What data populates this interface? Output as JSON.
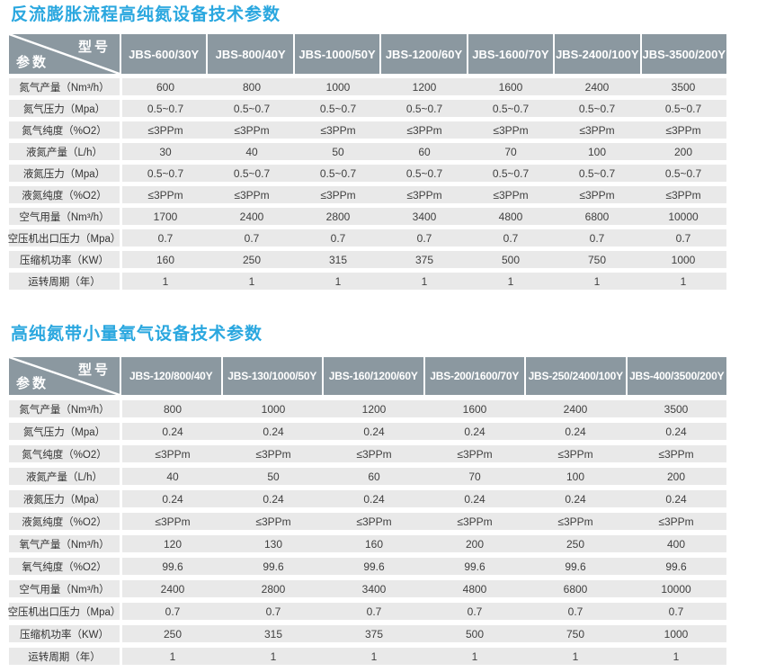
{
  "page": {
    "background": "#ffffff",
    "accent_title_color": "#2aa7df",
    "header_bg_color": "#8b98a0",
    "row_bg_color": "#e9e9e9"
  },
  "tables": [
    {
      "title": "反流膨胀流程高纯氮设备技术参数",
      "corner": {
        "top": "型号",
        "bottom": "参数"
      },
      "columns": [
        "JBS-600/30Y",
        "JBS-800/40Y",
        "JBS-1000/50Y",
        "JBS-1200/60Y",
        "JBS-1600/70Y",
        "JBS-2400/100Y",
        "JBS-3500/200Y"
      ],
      "rows": [
        {
          "label": "氮气产量（Nm³/h）",
          "values": [
            "600",
            "800",
            "1000",
            "1200",
            "1600",
            "2400",
            "3500"
          ]
        },
        {
          "label": "氮气压力（Mpa）",
          "values": [
            "0.5~0.7",
            "0.5~0.7",
            "0.5~0.7",
            "0.5~0.7",
            "0.5~0.7",
            "0.5~0.7",
            "0.5~0.7"
          ]
        },
        {
          "label": "氮气纯度（%O2）",
          "values": [
            "≤3PPm",
            "≤3PPm",
            "≤3PPm",
            "≤3PPm",
            "≤3PPm",
            "≤3PPm",
            "≤3PPm"
          ]
        },
        {
          "label": "液氮产量（L/h）",
          "values": [
            "30",
            "40",
            "50",
            "60",
            "70",
            "100",
            "200"
          ]
        },
        {
          "label": "液氮压力（Mpa）",
          "values": [
            "0.5~0.7",
            "0.5~0.7",
            "0.5~0.7",
            "0.5~0.7",
            "0.5~0.7",
            "0.5~0.7",
            "0.5~0.7"
          ]
        },
        {
          "label": "液氮纯度（%O2）",
          "values": [
            "≤3PPm",
            "≤3PPm",
            "≤3PPm",
            "≤3PPm",
            "≤3PPm",
            "≤3PPm",
            "≤3PPm"
          ]
        },
        {
          "label": "空气用量（Nm³/h）",
          "values": [
            "1700",
            "2400",
            "2800",
            "3400",
            "4800",
            "6800",
            "10000"
          ]
        },
        {
          "label": "空压机出口压力（Mpa）",
          "values": [
            "0.7",
            "0.7",
            "0.7",
            "0.7",
            "0.7",
            "0.7",
            "0.7"
          ]
        },
        {
          "label": "压缩机功率（KW）",
          "values": [
            "160",
            "250",
            "315",
            "375",
            "500",
            "750",
            "1000"
          ]
        },
        {
          "label": "运转周期（年）",
          "values": [
            "1",
            "1",
            "1",
            "1",
            "1",
            "1",
            "1"
          ]
        }
      ]
    },
    {
      "title": "高纯氮带小量氧气设备技术参数",
      "corner": {
        "top": "型号",
        "bottom": "参数"
      },
      "columns": [
        "JBS-120/800/40Y",
        "JBS-130/1000/50Y",
        "JBS-160/1200/60Y",
        "JBS-200/1600/70Y",
        "JBS-250/2400/100Y",
        "JBS-400/3500/200Y"
      ],
      "rows": [
        {
          "label": "氮气产量（Nm³/h）",
          "values": [
            "800",
            "1000",
            "1200",
            "1600",
            "2400",
            "3500"
          ]
        },
        {
          "label": "氮气压力（Mpa）",
          "values": [
            "0.24",
            "0.24",
            "0.24",
            "0.24",
            "0.24",
            "0.24"
          ]
        },
        {
          "label": "氮气纯度（%O2）",
          "values": [
            "≤3PPm",
            "≤3PPm",
            "≤3PPm",
            "≤3PPm",
            "≤3PPm",
            "≤3PPm"
          ]
        },
        {
          "label": "液氮产量（L/h）",
          "values": [
            "40",
            "50",
            "60",
            "70",
            "100",
            "200"
          ]
        },
        {
          "label": "液氮压力（Mpa）",
          "values": [
            "0.24",
            "0.24",
            "0.24",
            "0.24",
            "0.24",
            "0.24"
          ]
        },
        {
          "label": "液氮纯度（%O2）",
          "values": [
            "≤3PPm",
            "≤3PPm",
            "≤3PPm",
            "≤3PPm",
            "≤3PPm",
            "≤3PPm"
          ]
        },
        {
          "label": "氧气产量（Nm³/h）",
          "values": [
            "120",
            "130",
            "160",
            "200",
            "250",
            "400"
          ]
        },
        {
          "label": "氧气纯度（%O2）",
          "values": [
            "99.6",
            "99.6",
            "99.6",
            "99.6",
            "99.6",
            "99.6"
          ]
        },
        {
          "label": "空气用量（Nm³/h）",
          "values": [
            "2400",
            "2800",
            "3400",
            "4800",
            "6800",
            "10000"
          ]
        },
        {
          "label": "空压机出口压力（Mpa）",
          "values": [
            "0.7",
            "0.7",
            "0.7",
            "0.7",
            "0.7",
            "0.7"
          ]
        },
        {
          "label": "压缩机功率（KW）",
          "values": [
            "250",
            "315",
            "375",
            "500",
            "750",
            "1000"
          ]
        },
        {
          "label": "运转周期（年）",
          "values": [
            "1",
            "1",
            "1",
            "1",
            "1",
            "1"
          ]
        }
      ]
    }
  ]
}
